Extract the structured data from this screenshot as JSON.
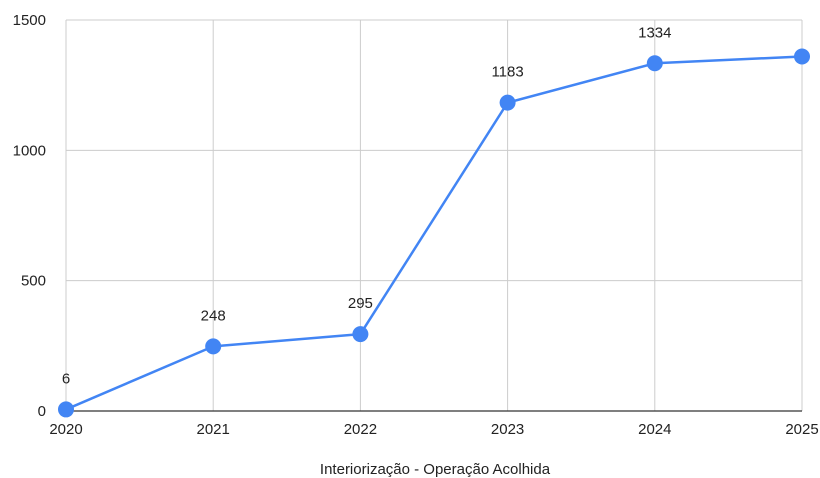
{
  "chart_data": {
    "type": "line",
    "title": "",
    "xlabel": "Interiorização - Operação Acolhida",
    "ylabel": "",
    "x": [
      "2020",
      "2021",
      "2022",
      "2023",
      "2024",
      "2025"
    ],
    "series": [
      {
        "values": [
          6,
          248,
          295,
          1183,
          1334,
          1360
        ],
        "data_labels": [
          "6",
          "248",
          "295",
          "1183",
          "1334",
          ""
        ]
      }
    ],
    "ylim": [
      0,
      1500
    ],
    "yticks": [
      "0",
      "500",
      "1000",
      "1500"
    ],
    "grid": true,
    "legend": "none",
    "colors": {
      "line": "#4285f4",
      "grid": "#cccccc",
      "axis": "#333333"
    }
  }
}
